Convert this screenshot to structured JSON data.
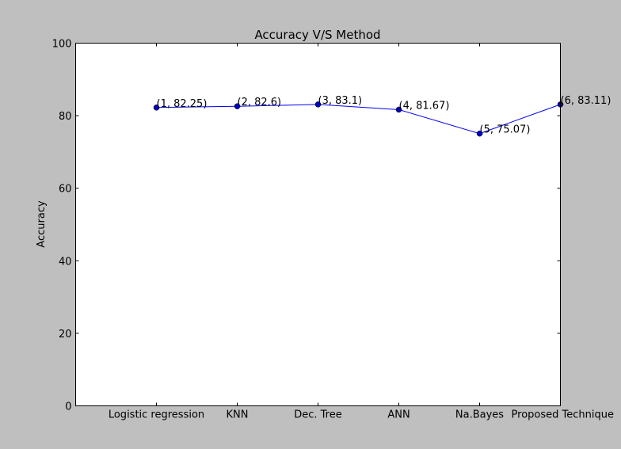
{
  "chart_data": {
    "type": "line",
    "title": "Accuracy V/S Method",
    "xlabel": "",
    "ylabel": "Accuracy",
    "categories": [
      "Logistic regression",
      "KNN",
      "Dec. Tree",
      "ANN",
      "Na.Bayes",
      "Proposed Technique"
    ],
    "x": [
      1,
      2,
      3,
      4,
      5,
      6
    ],
    "values": [
      82.25,
      82.6,
      83.1,
      81.67,
      75.07,
      83.11
    ],
    "point_labels": [
      "(1, 82.25)",
      "(2, 82.6)",
      "(3, 83.1)",
      "(4, 81.67)",
      "(5, 75.07)",
      "(6, 83.11)"
    ],
    "xlim": [
      0,
      6
    ],
    "ylim": [
      0,
      100
    ],
    "yticks": [
      0,
      20,
      40,
      60,
      80,
      100
    ],
    "grid": false,
    "series_color": "#0000ff",
    "marker_color": "#0000bf",
    "plot_background": "#ffffff",
    "figure_background": "#bfbfbf"
  }
}
